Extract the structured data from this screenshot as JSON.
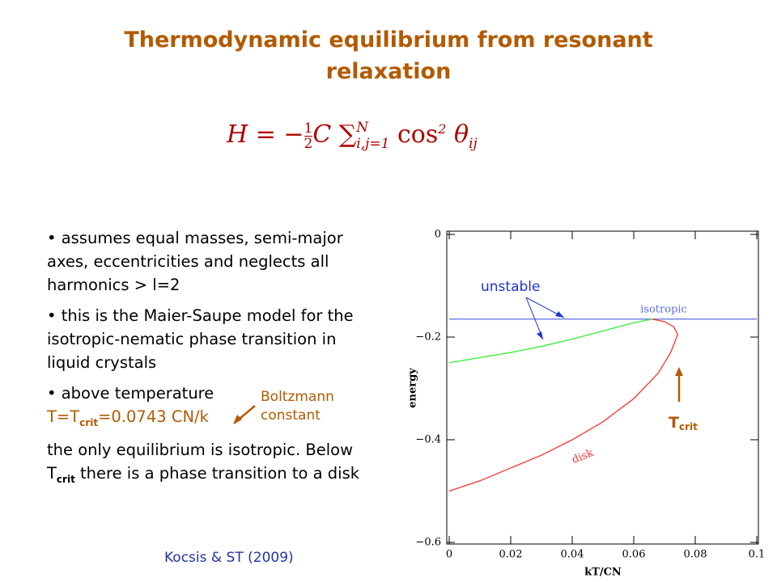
{
  "title": "Thermodynamic equilibrium from resonant relaxation",
  "equation": {
    "lhs": "H = −",
    "num": "1",
    "den": "2",
    "c": "C",
    "sum": "∑",
    "upper": "N",
    "lower": "i,j=1",
    "cos": "cos",
    "power": "2",
    "theta": "θ",
    "index": "ij"
  },
  "bullets": [
    {
      "text": "• assumes equal masses, semi-major axes, eccentricities and neglects all harmonics > l=2"
    },
    {
      "text": "• this is the Maier-Saupe model for the isotropic-nematic phase transition in liquid crystals"
    },
    {
      "text": "• above temperature",
      "formula": [
        "T=T",
        "crit",
        "=0.0743 CN/k"
      ],
      "after": [
        "the only equilibrium is isotropic. Below T",
        "crit",
        " there is a phase transition to a disk"
      ]
    }
  ],
  "note": "Boltzmann constant",
  "citation": "Kocsis & ST (2009)",
  "chart_data": {
    "type": "line",
    "xlabel": "kT/CN",
    "ylabel": "energy",
    "xlim": [
      0,
      0.1
    ],
    "ylim": [
      -0.6,
      0
    ],
    "xticks": [
      0,
      0.02,
      0.04,
      0.06,
      0.08,
      0.1
    ],
    "yticks": [
      {
        "value": -0.6,
        "label": "−0.6"
      },
      {
        "value": -0.4,
        "label": "−0.4"
      },
      {
        "value": -0.2,
        "label": "−0.2"
      },
      0
    ],
    "series": [
      {
        "name": "isotropic",
        "color": "#5b6ee8",
        "x": [
          0,
          0.1
        ],
        "values": [
          -0.165,
          -0.165
        ]
      },
      {
        "color": "#33ee33",
        "x": [
          0,
          0.01,
          0.02,
          0.03,
          0.04,
          0.05,
          0.06,
          0.066
        ],
        "values": [
          -0.25,
          -0.24,
          -0.23,
          -0.218,
          -0.204,
          -0.188,
          -0.172,
          -0.165
        ]
      },
      {
        "name": "disk",
        "color": "#ff3333",
        "x": [
          0,
          0.01,
          0.02,
          0.03,
          0.04,
          0.05,
          0.06,
          0.068,
          0.072,
          0.0743,
          0.073,
          0.07,
          0.066
        ],
        "values": [
          -0.5,
          -0.48,
          -0.455,
          -0.43,
          -0.4,
          -0.365,
          -0.32,
          -0.27,
          -0.23,
          -0.195,
          -0.18,
          -0.17,
          -0.165
        ]
      }
    ],
    "annotations": {
      "unstable": "unstable",
      "tcrit": [
        "T",
        "crit"
      ]
    }
  }
}
